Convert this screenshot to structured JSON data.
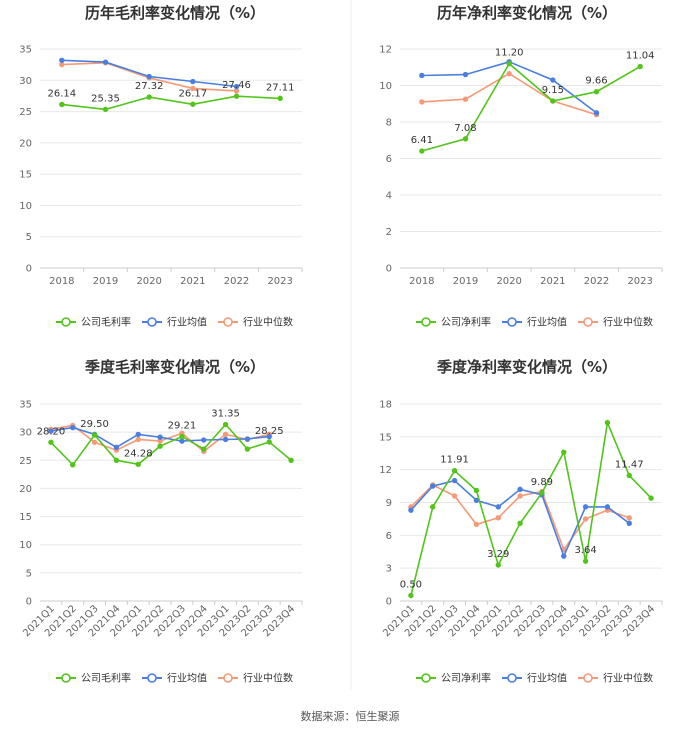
{
  "colors": {
    "company": "#52c41a",
    "industry_avg": "#4a7ee0",
    "industry_median": "#f59a78",
    "grid": "#e8e8e8",
    "axis": "#cccccc"
  },
  "source": "数据来源：恒生聚源",
  "chart_data": [
    {
      "type": "line",
      "title": "历年毛利率变化情况（%）",
      "categories": [
        "2018",
        "2019",
        "2020",
        "2021",
        "2022",
        "2023"
      ],
      "yticks": [
        "0",
        "5",
        "10",
        "15",
        "20",
        "25",
        "30",
        "35"
      ],
      "ylim": [
        0,
        35
      ],
      "series": [
        {
          "name": "公司毛利率",
          "color_key": "company",
          "values": [
            26.14,
            25.35,
            27.32,
            26.17,
            27.46,
            27.11
          ]
        },
        {
          "name": "行业均值",
          "color_key": "industry_avg",
          "values": [
            33.2,
            32.9,
            30.6,
            29.8,
            29.0,
            null
          ]
        },
        {
          "name": "行业中位数",
          "color_key": "industry_median",
          "values": [
            32.5,
            32.8,
            30.4,
            28.7,
            28.3,
            null
          ]
        }
      ],
      "data_labels": [
        {
          "index": 0,
          "text": "26.14"
        },
        {
          "index": 1,
          "text": "25.35"
        },
        {
          "index": 2,
          "text": "27.32"
        },
        {
          "index": 3,
          "text": "26.17"
        },
        {
          "index": 4,
          "text": "27.46"
        },
        {
          "index": 5,
          "text": "27.11"
        }
      ]
    },
    {
      "type": "line",
      "title": "历年净利率变化情况（%）",
      "categories": [
        "2018",
        "2019",
        "2020",
        "2021",
        "2022",
        "2023"
      ],
      "yticks": [
        "0",
        "2",
        "4",
        "6",
        "8",
        "10",
        "12"
      ],
      "ylim": [
        0,
        12
      ],
      "series": [
        {
          "name": "公司净利率",
          "color_key": "company",
          "values": [
            6.41,
            7.08,
            11.2,
            9.15,
            9.66,
            11.04
          ]
        },
        {
          "name": "行业均值",
          "color_key": "industry_avg",
          "values": [
            10.55,
            10.6,
            11.3,
            10.3,
            8.5,
            null
          ]
        },
        {
          "name": "行业中位数",
          "color_key": "industry_median",
          "values": [
            9.1,
            9.25,
            10.65,
            9.15,
            8.4,
            null
          ]
        }
      ],
      "data_labels": [
        {
          "index": 0,
          "text": "6.41"
        },
        {
          "index": 1,
          "text": "7.08"
        },
        {
          "index": 2,
          "text": "11.20"
        },
        {
          "index": 3,
          "text": "9.15"
        },
        {
          "index": 4,
          "text": "9.66"
        },
        {
          "index": 5,
          "text": "11.04"
        }
      ]
    },
    {
      "type": "line",
      "title": "季度毛利率变化情况（%）",
      "categories": [
        "2021Q1",
        "2021Q2",
        "2021Q3",
        "2021Q4",
        "2022Q1",
        "2022Q2",
        "2022Q3",
        "2022Q4",
        "2023Q1",
        "2023Q2",
        "2023Q3",
        "2023Q4"
      ],
      "yticks": [
        "0",
        "5",
        "10",
        "15",
        "20",
        "25",
        "30",
        "35"
      ],
      "ylim": [
        0,
        35
      ],
      "series": [
        {
          "name": "公司毛利率",
          "color_key": "company",
          "values": [
            28.2,
            24.2,
            29.5,
            25.0,
            24.28,
            27.5,
            29.21,
            27.0,
            31.35,
            27.0,
            28.25,
            25.0
          ]
        },
        {
          "name": "行业均值",
          "color_key": "industry_avg",
          "values": [
            30.2,
            30.8,
            29.6,
            27.3,
            29.6,
            29.1,
            28.4,
            28.6,
            28.7,
            28.8,
            29.2,
            null
          ]
        },
        {
          "name": "行业中位数",
          "color_key": "industry_median",
          "values": [
            30.5,
            31.2,
            28.2,
            26.8,
            28.7,
            28.4,
            29.8,
            26.6,
            29.6,
            28.7,
            29.6,
            null
          ]
        }
      ],
      "data_labels": [
        {
          "index": 0,
          "text": "28.20"
        },
        {
          "index": 2,
          "text": "29.50"
        },
        {
          "index": 4,
          "text": "24.28"
        },
        {
          "index": 6,
          "text": "29.21"
        },
        {
          "index": 8,
          "text": "31.35"
        },
        {
          "index": 10,
          "text": "28.25"
        }
      ]
    },
    {
      "type": "line",
      "title": "季度净利率变化情况（%）",
      "categories": [
        "2021Q1",
        "2021Q2",
        "2021Q3",
        "2021Q4",
        "2022Q1",
        "2022Q2",
        "2022Q3",
        "2022Q4",
        "2023Q1",
        "2023Q2",
        "2023Q3",
        "2023Q4"
      ],
      "yticks": [
        "0",
        "3",
        "6",
        "9",
        "12",
        "15",
        "18"
      ],
      "ylim": [
        0,
        18
      ],
      "series": [
        {
          "name": "公司净利率",
          "color_key": "company",
          "values": [
            0.5,
            8.6,
            11.91,
            10.1,
            3.29,
            7.1,
            9.89,
            13.6,
            3.64,
            16.3,
            11.47,
            9.4
          ]
        },
        {
          "name": "行业均值",
          "color_key": "industry_avg",
          "values": [
            8.3,
            10.5,
            11.0,
            9.2,
            8.6,
            10.2,
            9.7,
            4.1,
            8.6,
            8.6,
            7.1,
            null
          ]
        },
        {
          "name": "行业中位数",
          "color_key": "industry_median",
          "values": [
            8.6,
            10.6,
            9.6,
            7.0,
            7.6,
            9.6,
            10.0,
            4.7,
            7.5,
            8.3,
            7.6,
            null
          ]
        }
      ],
      "data_labels": [
        {
          "index": 0,
          "text": "0.50"
        },
        {
          "index": 2,
          "text": "11.91"
        },
        {
          "index": 4,
          "text": "3.29"
        },
        {
          "index": 6,
          "text": "9.89"
        },
        {
          "index": 8,
          "text": "3.64"
        },
        {
          "index": 10,
          "text": "11.47"
        }
      ]
    }
  ]
}
